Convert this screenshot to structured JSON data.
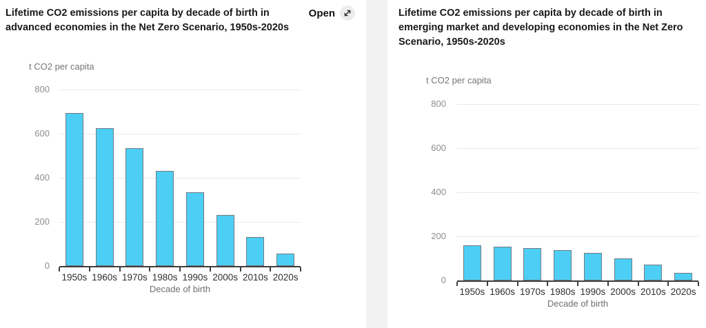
{
  "left_panel": {
    "open_label": "Open",
    "open_icon": "expand-arrow-icon"
  },
  "chart_data": [
    {
      "type": "bar",
      "title": "Lifetime CO2 emissions per capita by decade of birth in advanced economies in the Net Zero Scenario, 1950s-2020s",
      "categories": [
        "1950s",
        "1960s",
        "1970s",
        "1980s",
        "1990s",
        "2000s",
        "2010s",
        "2020s"
      ],
      "values": [
        695,
        625,
        535,
        430,
        335,
        230,
        130,
        55
      ],
      "xlabel": "Decade of birth",
      "ylabel": "t CO2 per capita",
      "ylim": [
        0,
        800
      ],
      "yticks": [
        0,
        200,
        400,
        600,
        800
      ],
      "grid": true,
      "legend_position": "none",
      "bar_color": "#4DCEF5",
      "bar_border_color": "#727A7E"
    },
    {
      "type": "bar",
      "title": "Lifetime CO2 emissions per capita by decade of birth in emerging market and developing economies in the Net Zero Scenario, 1950s-2020s",
      "categories": [
        "1950s",
        "1960s",
        "1970s",
        "1980s",
        "1990s",
        "2000s",
        "2010s",
        "2020s"
      ],
      "values": [
        160,
        153,
        146,
        139,
        124,
        100,
        72,
        35
      ],
      "xlabel": "Decade of birth",
      "ylabel": "t CO2 per capita",
      "ylim": [
        0,
        800
      ],
      "yticks": [
        0,
        200,
        400,
        600,
        800
      ],
      "grid": true,
      "legend_position": "none",
      "bar_color": "#4DCEF5",
      "bar_border_color": "#727A7E"
    }
  ]
}
